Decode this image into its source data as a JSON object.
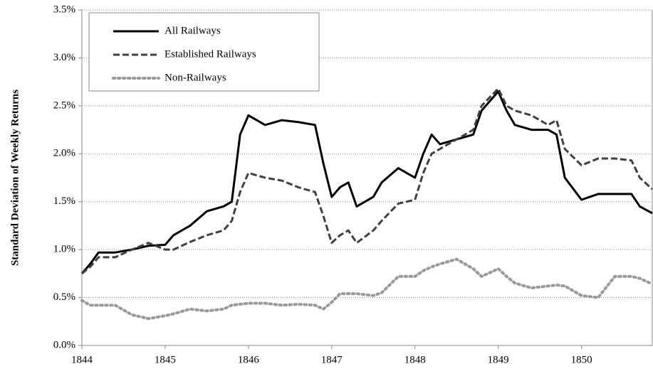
{
  "chart_data": {
    "type": "line",
    "y_axis_label": "Standard Deviation of Weekly Returns",
    "x": [
      1844.0,
      1844.1,
      1844.2,
      1844.4,
      1844.6,
      1844.8,
      1845.0,
      1845.1,
      1845.3,
      1845.5,
      1845.7,
      1845.8,
      1845.9,
      1846.0,
      1846.2,
      1846.4,
      1846.6,
      1846.8,
      1846.9,
      1847.0,
      1847.1,
      1847.2,
      1847.3,
      1847.5,
      1847.6,
      1847.8,
      1848.0,
      1848.1,
      1848.2,
      1848.3,
      1848.5,
      1848.7,
      1848.8,
      1849.0,
      1849.1,
      1849.2,
      1849.4,
      1849.6,
      1849.7,
      1849.8,
      1850.0,
      1850.2,
      1850.4,
      1850.6,
      1850.7,
      1850.85
    ],
    "series": [
      {
        "name": "All Railways",
        "color": "#000000",
        "line_style": "solid",
        "values": [
          0.75,
          0.85,
          0.97,
          0.97,
          1.0,
          1.04,
          1.05,
          1.15,
          1.25,
          1.4,
          1.45,
          1.5,
          2.2,
          2.4,
          2.3,
          2.35,
          2.33,
          2.3,
          1.9,
          1.55,
          1.65,
          1.7,
          1.45,
          1.55,
          1.7,
          1.85,
          1.75,
          2.0,
          2.2,
          2.1,
          2.15,
          2.2,
          2.45,
          2.65,
          2.45,
          2.3,
          2.25,
          2.25,
          2.2,
          1.75,
          1.52,
          1.58,
          1.58,
          1.58,
          1.45,
          1.38
        ]
      },
      {
        "name": "Established Railways",
        "color": "#404040",
        "line_style": "dashed",
        "values": [
          0.75,
          0.82,
          0.92,
          0.92,
          1.0,
          1.07,
          1.0,
          1.0,
          1.08,
          1.15,
          1.2,
          1.3,
          1.6,
          1.8,
          1.75,
          1.72,
          1.65,
          1.6,
          1.35,
          1.07,
          1.15,
          1.2,
          1.07,
          1.2,
          1.3,
          1.48,
          1.52,
          1.8,
          2.0,
          2.05,
          2.15,
          2.25,
          2.5,
          2.68,
          2.5,
          2.45,
          2.4,
          2.3,
          2.35,
          2.05,
          1.88,
          1.95,
          1.95,
          1.93,
          1.75,
          1.63
        ]
      },
      {
        "name": "Non-Railways",
        "color": "#999999",
        "line_style": "dotted",
        "values": [
          0.47,
          0.42,
          0.42,
          0.42,
          0.32,
          0.28,
          0.31,
          0.33,
          0.38,
          0.36,
          0.38,
          0.42,
          0.43,
          0.44,
          0.44,
          0.42,
          0.43,
          0.42,
          0.38,
          0.45,
          0.54,
          0.54,
          0.54,
          0.52,
          0.55,
          0.72,
          0.72,
          0.78,
          0.82,
          0.85,
          0.9,
          0.8,
          0.72,
          0.8,
          0.72,
          0.65,
          0.6,
          0.62,
          0.63,
          0.62,
          0.52,
          0.5,
          0.72,
          0.72,
          0.7,
          0.64
        ]
      }
    ],
    "xlim": [
      1844,
      1850.85
    ],
    "xticks": [
      1844,
      1845,
      1846,
      1847,
      1848,
      1849,
      1850
    ],
    "ylim": [
      0,
      3.5
    ],
    "yticks": [
      {
        "value": 0,
        "label": "0.0%"
      },
      {
        "value": 0.5,
        "label": "0.5%"
      },
      {
        "value": 1,
        "label": "1.0%"
      },
      {
        "value": 1.5,
        "label": "1.5%"
      },
      {
        "value": 2,
        "label": "2.0%"
      },
      {
        "value": 2.5,
        "label": "2.5%"
      },
      {
        "value": 3,
        "label": "3.0%"
      },
      {
        "value": 3.5,
        "label": "3.5%"
      }
    ],
    "grid": true,
    "legend": "top-left"
  }
}
